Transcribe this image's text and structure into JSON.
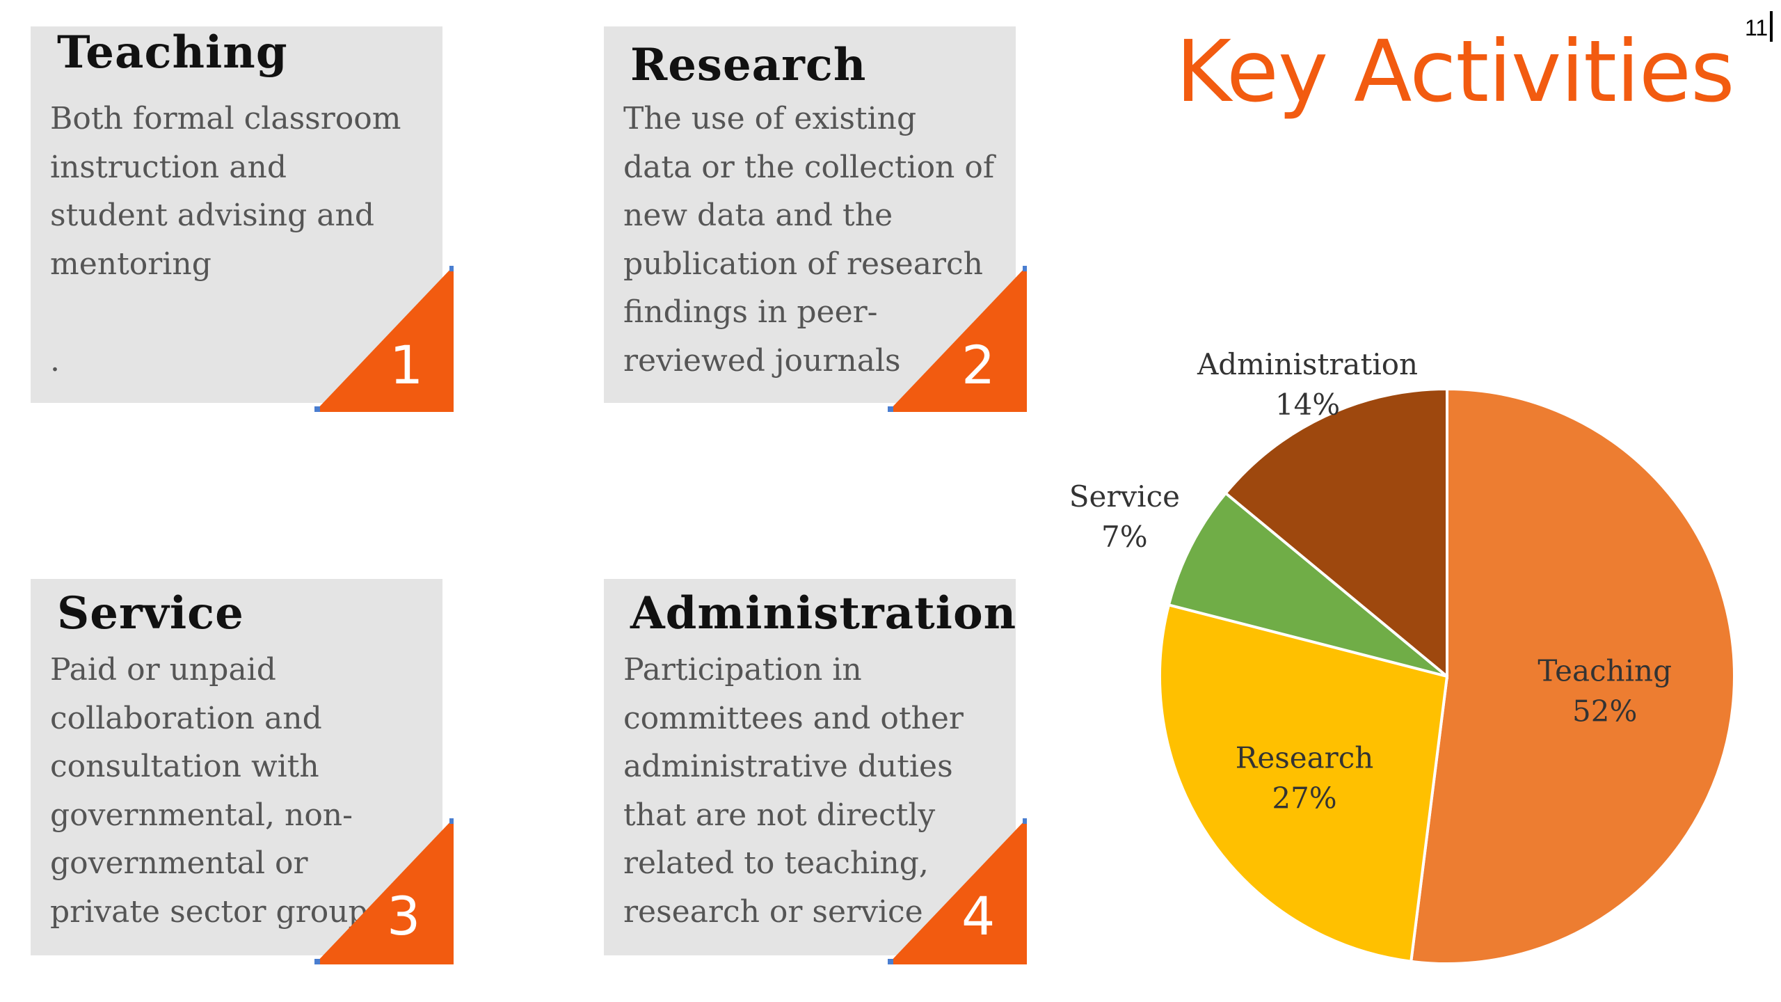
{
  "slide": {
    "title": "Key Activities",
    "number": "11"
  },
  "cards": [
    {
      "title": "Teaching",
      "body": "Both formal classroom\ninstruction and\nstudent advising and\nmentoring\n\n.",
      "number": "1"
    },
    {
      "title": "Research",
      "body": "The use of existing\ndata or the collection of\nnew data and the\npublication of research\nfindings in peer-\nreviewed journals",
      "number": "2"
    },
    {
      "title": "Service",
      "body": "Paid or unpaid\ncollaboration and\nconsultation with\ngovernmental, non-\ngovernmental or\nprivate sector groups",
      "number": "3"
    },
    {
      "title": "Administration",
      "body": "Participation in\ncommittees and other\nadministrative duties\nthat are not directly\nrelated to teaching,\nresearch or service",
      "number": "4"
    }
  ],
  "colors": {
    "accent": "#f25b10",
    "card_bg": "#e4e4e4"
  },
  "chart_data": {
    "type": "pie",
    "title": "",
    "slices": [
      {
        "name": "Teaching",
        "value": 52,
        "label": "52%",
        "color": "#ed7d31"
      },
      {
        "name": "Research",
        "value": 27,
        "label": "27%",
        "color": "#ffc000"
      },
      {
        "name": "Service",
        "value": 7,
        "label": "7%",
        "color": "#70ad47"
      },
      {
        "name": "Administration",
        "value": 14,
        "label": "14%",
        "color": "#9e480e"
      }
    ]
  }
}
